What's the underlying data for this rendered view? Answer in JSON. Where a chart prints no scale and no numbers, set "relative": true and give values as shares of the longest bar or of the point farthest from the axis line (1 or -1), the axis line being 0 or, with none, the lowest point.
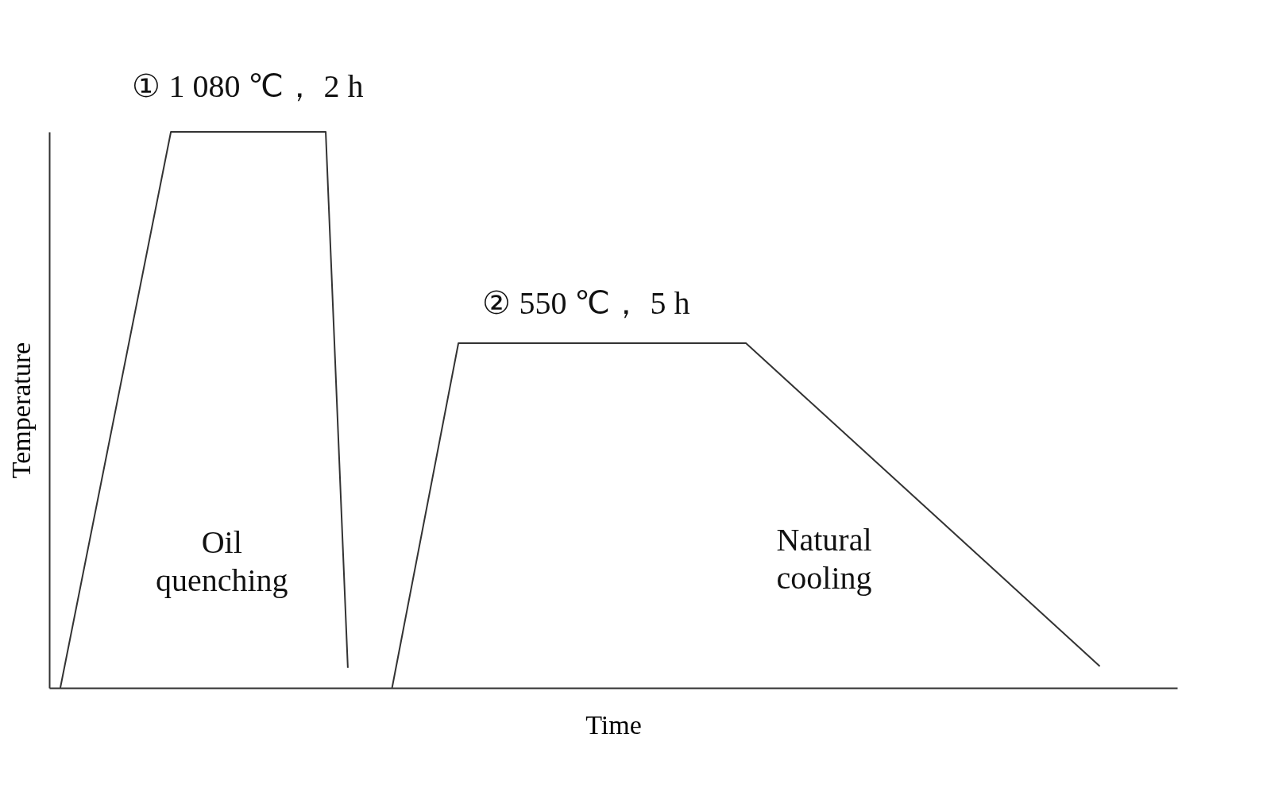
{
  "chart_data": {
    "type": "line",
    "relative": true,
    "xlabel": "Time",
    "ylabel": "Temperature",
    "line_style": "solid",
    "categories": [
      null,
      null,
      null,
      null,
      null,
      null,
      null,
      null,
      null,
      null,
      null,
      null,
      null,
      null,
      null,
      null,
      null,
      null,
      null,
      null,
      null,
      null,
      null,
      null,
      null,
      null,
      null,
      null,
      null,
      null,
      null,
      null,
      null,
      null,
      null,
      null,
      null,
      null,
      null,
      null,
      null,
      null,
      null,
      null,
      null,
      null,
      null,
      null,
      null,
      null,
      null
    ],
    "series": [
      {
        "color": "#333333",
        "values": [
          0,
          null,
          null,
          null,
          null,
          1,
          null,
          null,
          null,
          null,
          null,
          null,
          1,
          0.036,
          null,
          null,
          null,
          null,
          null,
          null,
          null,
          null,
          null,
          null,
          null,
          null,
          null,
          null,
          null,
          null,
          null,
          null,
          null,
          null,
          null,
          null,
          null,
          null,
          null,
          null,
          null,
          null,
          null,
          null,
          null,
          null,
          null,
          null,
          null,
          null,
          null
        ]
      },
      {
        "color": "#333333",
        "values": [
          null,
          null,
          null,
          null,
          null,
          null,
          null,
          null,
          null,
          null,
          null,
          null,
          null,
          null,
          null,
          0,
          null,
          null,
          0.62,
          null,
          null,
          null,
          null,
          null,
          null,
          null,
          null,
          null,
          null,
          null,
          null,
          0.62,
          null,
          null,
          null,
          null,
          null,
          null,
          null,
          null,
          null,
          null,
          null,
          null,
          null,
          null,
          null,
          0.039,
          null,
          null,
          null
        ]
      }
    ],
    "annotations": [
      "① 1 080 ℃， 2 h",
      "② 550 ℃， 5 h",
      "Oil\nquenching",
      "Natural\ncooling"
    ]
  }
}
